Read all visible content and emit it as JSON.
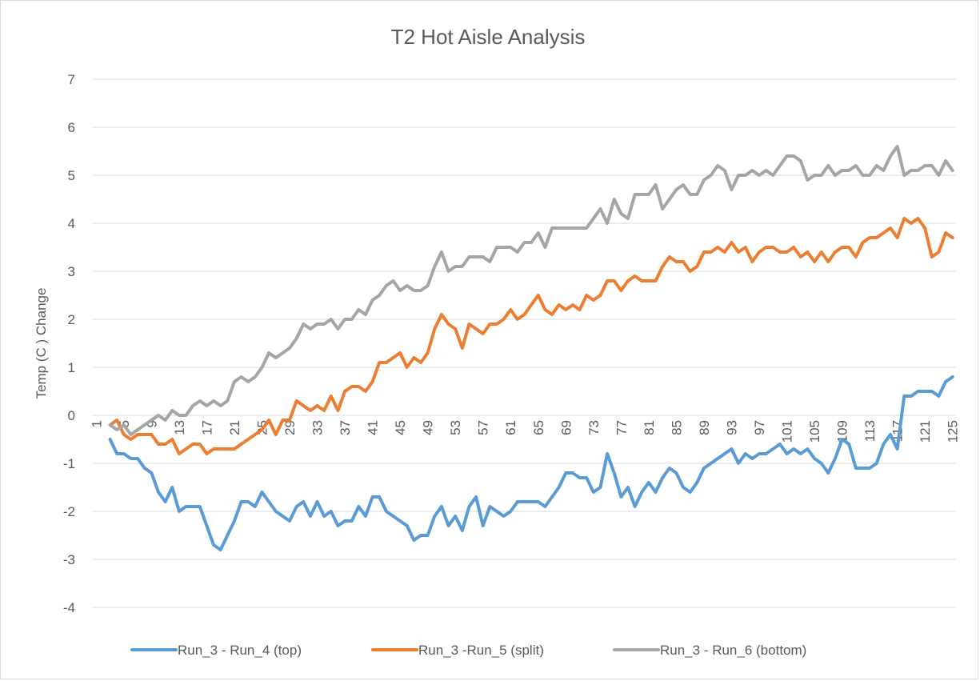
{
  "chart_data": {
    "type": "line",
    "title": "T2 Hot Aisle Analysis",
    "y_label": "Temp (C ) Change",
    "categories": [
      "1",
      null,
      null,
      null,
      "5",
      null,
      null,
      null,
      "9",
      null,
      null,
      null,
      "13",
      null,
      null,
      null,
      "17",
      null,
      null,
      null,
      "21",
      null,
      null,
      null,
      "25",
      null,
      null,
      null,
      "29",
      null,
      null,
      null,
      "33",
      null,
      null,
      null,
      "37",
      null,
      null,
      null,
      "41",
      null,
      null,
      null,
      "45",
      null,
      null,
      null,
      "49",
      null,
      null,
      null,
      "53",
      null,
      null,
      null,
      "57",
      null,
      null,
      null,
      "61",
      null,
      null,
      null,
      "65",
      null,
      null,
      null,
      "69",
      null,
      null,
      null,
      "73",
      null,
      null,
      null,
      "77",
      null,
      null,
      null,
      "81",
      null,
      null,
      null,
      "85",
      null,
      null,
      null,
      "89",
      null,
      null,
      null,
      "93",
      null,
      null,
      null,
      "97",
      null,
      null,
      null,
      "101",
      null,
      null,
      null,
      "105",
      null,
      null,
      null,
      "109",
      null,
      null,
      null,
      "113",
      null,
      null,
      null,
      "117",
      null,
      null,
      null,
      "121",
      null,
      null,
      null,
      "125"
    ],
    "series": [
      {
        "name": "Run_3 - Run_4 (top)",
        "color": "#5b9bd5",
        "values": [
          null,
          null,
          -0.5,
          -0.8,
          -0.8,
          -0.9,
          -0.9,
          -1.1,
          -1.2,
          -1.6,
          -1.8,
          -1.5,
          -2.0,
          -1.9,
          -1.9,
          -1.9,
          -2.3,
          -2.7,
          -2.8,
          -2.5,
          -2.2,
          -1.8,
          -1.8,
          -1.9,
          -1.6,
          -1.8,
          -2.0,
          -2.1,
          -2.2,
          -1.9,
          -1.8,
          -2.1,
          -1.8,
          -2.1,
          -2.0,
          -2.3,
          -2.2,
          -2.2,
          -1.9,
          -2.1,
          -1.7,
          -1.7,
          -2.0,
          -2.1,
          -2.2,
          -2.3,
          -2.6,
          -2.5,
          -2.5,
          -2.1,
          -1.9,
          -2.3,
          -2.1,
          -2.4,
          -1.9,
          -1.7,
          -2.3,
          -1.9,
          -2.0,
          -2.1,
          -2.0,
          -1.8,
          -1.8,
          -1.8,
          -1.8,
          -1.9,
          -1.7,
          -1.5,
          -1.2,
          -1.2,
          -1.3,
          -1.3,
          -1.6,
          -1.5,
          -0.8,
          -1.2,
          -1.7,
          -1.5,
          -1.9,
          -1.6,
          -1.4,
          -1.6,
          -1.3,
          -1.1,
          -1.2,
          -1.5,
          -1.6,
          -1.4,
          -1.1,
          -1.0,
          -0.9,
          -0.8,
          -0.7,
          -1.0,
          -0.8,
          -0.9,
          -0.8,
          -0.8,
          -0.7,
          -0.6,
          -0.8,
          -0.7,
          -0.8,
          -0.7,
          -0.9,
          -1.0,
          -1.2,
          -0.9,
          -0.5,
          -0.6,
          -1.1,
          -1.1,
          -1.1,
          -1.0,
          -0.6,
          -0.4,
          -0.7,
          0.4,
          0.4,
          0.5,
          0.5,
          0.5,
          0.4,
          0.7,
          0.8
        ]
      },
      {
        "name": "Run_3 -Run_5 (split)",
        "color": "#ed7d31",
        "values": [
          null,
          null,
          -0.2,
          -0.1,
          -0.4,
          -0.5,
          -0.4,
          -0.4,
          -0.4,
          -0.6,
          -0.6,
          -0.5,
          -0.8,
          -0.7,
          -0.6,
          -0.6,
          -0.8,
          -0.7,
          -0.7,
          -0.7,
          -0.7,
          -0.6,
          -0.5,
          -0.4,
          -0.3,
          -0.1,
          -0.4,
          -0.1,
          -0.1,
          0.3,
          0.2,
          0.1,
          0.2,
          0.1,
          0.4,
          0.1,
          0.5,
          0.6,
          0.6,
          0.5,
          0.7,
          1.1,
          1.1,
          1.2,
          1.3,
          1.0,
          1.2,
          1.1,
          1.3,
          1.8,
          2.1,
          1.9,
          1.8,
          1.4,
          1.9,
          1.8,
          1.7,
          1.9,
          1.9,
          2.0,
          2.2,
          2.0,
          2.1,
          2.3,
          2.5,
          2.2,
          2.1,
          2.3,
          2.2,
          2.3,
          2.2,
          2.5,
          2.4,
          2.5,
          2.8,
          2.8,
          2.6,
          2.8,
          2.9,
          2.8,
          2.8,
          2.8,
          3.1,
          3.3,
          3.2,
          3.2,
          3.0,
          3.1,
          3.4,
          3.4,
          3.5,
          3.4,
          3.6,
          3.4,
          3.5,
          3.2,
          3.4,
          3.5,
          3.5,
          3.4,
          3.4,
          3.5,
          3.3,
          3.4,
          3.2,
          3.4,
          3.2,
          3.4,
          3.5,
          3.5,
          3.3,
          3.6,
          3.7,
          3.7,
          3.8,
          3.9,
          3.7,
          4.1,
          4.0,
          4.1,
          3.9,
          3.3,
          3.4,
          3.8,
          3.7
        ]
      },
      {
        "name": "Run_3 - Run_6 (bottom)",
        "color": "#a5a5a5",
        "values": [
          null,
          null,
          -0.2,
          -0.3,
          -0.2,
          -0.4,
          -0.3,
          -0.2,
          -0.1,
          0.0,
          -0.1,
          0.1,
          0.0,
          0.0,
          0.2,
          0.3,
          0.2,
          0.3,
          0.2,
          0.3,
          0.7,
          0.8,
          0.7,
          0.8,
          1.0,
          1.3,
          1.2,
          1.3,
          1.4,
          1.6,
          1.9,
          1.8,
          1.9,
          1.9,
          2.0,
          1.8,
          2.0,
          2.0,
          2.2,
          2.1,
          2.4,
          2.5,
          2.7,
          2.8,
          2.6,
          2.7,
          2.6,
          2.6,
          2.7,
          3.1,
          3.4,
          3.0,
          3.1,
          3.1,
          3.3,
          3.3,
          3.3,
          3.2,
          3.5,
          3.5,
          3.5,
          3.4,
          3.6,
          3.6,
          3.8,
          3.5,
          3.9,
          3.9,
          3.9,
          3.9,
          3.9,
          3.9,
          4.1,
          4.3,
          4.0,
          4.5,
          4.2,
          4.1,
          4.6,
          4.6,
          4.6,
          4.8,
          4.3,
          4.5,
          4.7,
          4.8,
          4.6,
          4.6,
          4.9,
          5.0,
          5.2,
          5.1,
          4.7,
          5.0,
          5.0,
          5.1,
          5.0,
          5.1,
          5.0,
          5.2,
          5.4,
          5.4,
          5.3,
          4.9,
          5.0,
          5.0,
          5.2,
          5.0,
          5.1,
          5.1,
          5.2,
          5.0,
          5.0,
          5.2,
          5.1,
          5.4,
          5.6,
          5.0,
          5.1,
          5.1,
          5.2,
          5.2,
          5.0,
          5.3,
          5.1
        ]
      }
    ],
    "ylim": [
      -4,
      7
    ],
    "yticks": [
      -4,
      -3,
      -2,
      -1,
      0,
      1,
      2,
      3,
      4,
      5,
      6,
      7
    ],
    "grid": true,
    "legend": "bottom"
  }
}
